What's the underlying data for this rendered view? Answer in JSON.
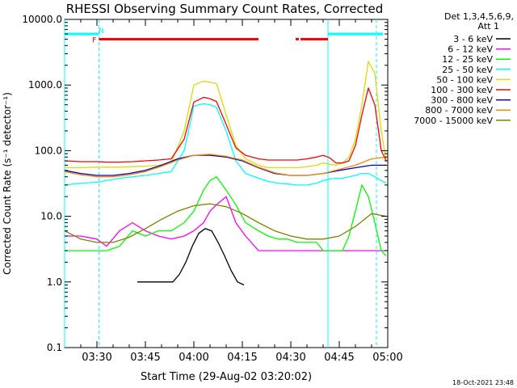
{
  "chart_data": {
    "type": "line",
    "title": "RHESSI Observing Summary Count Rates, Corrected",
    "xlabel": "Start Time (29-Aug-02 03:20:02)",
    "ylabel": "Corrected Count Rate (s⁻¹ detector⁻¹)",
    "y_scale": "log",
    "ylim": [
      0.1,
      10000
    ],
    "xlim_minutes": [
      0,
      100
    ],
    "x_ticks": [
      {
        "t": 10,
        "label": "03:30"
      },
      {
        "t": 25,
        "label": "03:45"
      },
      {
        "t": 40,
        "label": "04:00"
      },
      {
        "t": 55,
        "label": "04:15"
      },
      {
        "t": 70,
        "label": "04:30"
      },
      {
        "t": 85,
        "label": "04:45"
      },
      {
        "t": 100,
        "label": "05:00"
      }
    ],
    "y_ticks": [
      {
        "v": 0.1,
        "label": "0.1"
      },
      {
        "v": 1,
        "label": "1.0"
      },
      {
        "v": 10,
        "label": "10.0"
      },
      {
        "v": 100,
        "label": "100.0"
      },
      {
        "v": 1000,
        "label": "1000.0"
      },
      {
        "v": 10000,
        "label": "10000.0"
      }
    ],
    "legend": {
      "placement": "right",
      "header1": "Det 1,3,4,5,6,9,",
      "header2": "Att 1"
    },
    "series": [
      {
        "name": "3 - 6 keV",
        "color": "#000000",
        "x": [
          22.5,
          25.5,
          27.5,
          29.5,
          31.5,
          33.5,
          35.5,
          37.5,
          39.5,
          41.5,
          43.5,
          45.5,
          47.5,
          49.5,
          51.5,
          53.5,
          55.5
        ],
        "y": [
          1.0,
          1.0,
          1.0,
          1.0,
          1.0,
          1.0,
          1.3,
          2.0,
          3.5,
          5.5,
          6.5,
          6.0,
          4.0,
          2.5,
          1.5,
          1.0,
          0.9
        ]
      },
      {
        "name": "6 - 12 keV",
        "color": "#ff00ff",
        "x": [
          0,
          5,
          10,
          13,
          17,
          21,
          25,
          29,
          33,
          37,
          40,
          43,
          45,
          47,
          50,
          53,
          56,
          60,
          63,
          66,
          69,
          72,
          75,
          78,
          80,
          82,
          84,
          86,
          88,
          90,
          92,
          94,
          96,
          98,
          99.5
        ],
        "y": [
          5,
          5,
          4.5,
          3.5,
          6,
          8,
          6,
          5,
          4.5,
          5,
          6,
          8,
          12,
          15,
          20,
          8,
          5,
          3,
          3,
          3,
          3,
          3,
          3,
          3,
          3,
          3,
          3,
          3,
          3,
          3,
          3,
          3,
          3,
          3,
          3
        ]
      },
      {
        "name": "12 - 25 keV",
        "color": "#00ff00",
        "x": [
          0,
          5,
          10,
          13,
          17,
          21,
          25,
          29,
          33,
          37,
          40,
          43,
          45,
          47,
          50,
          53,
          56,
          60,
          63,
          66,
          69,
          72,
          75,
          78,
          80,
          82,
          84,
          86,
          88,
          90,
          92,
          94,
          96,
          98,
          99.5
        ],
        "y": [
          3,
          3,
          3,
          3,
          3.5,
          6,
          5,
          6,
          6,
          8,
          12,
          25,
          35,
          40,
          25,
          15,
          8,
          6,
          5,
          4.5,
          4.5,
          4,
          4,
          4,
          3,
          3,
          3,
          3,
          5,
          12,
          30,
          20,
          8,
          3,
          2.5
        ]
      },
      {
        "name": "25 - 50 keV",
        "color": "#00ffff",
        "x": [
          0,
          5,
          10,
          13,
          17,
          21,
          25,
          29,
          33,
          37,
          40,
          43,
          45,
          47,
          50,
          53,
          56,
          60,
          63,
          66,
          69,
          72,
          75,
          78,
          80,
          82,
          84,
          86,
          88,
          90,
          92,
          94,
          96,
          98,
          99.5
        ],
        "y": [
          30,
          32,
          33,
          35,
          38,
          40,
          42,
          45,
          48,
          100,
          480,
          520,
          500,
          460,
          200,
          70,
          45,
          38,
          34,
          32,
          31,
          30,
          30,
          32,
          35,
          37,
          38,
          38,
          40,
          42,
          45,
          45,
          40,
          35,
          32
        ]
      },
      {
        "name": "50 - 100 keV",
        "color": "#dddd00",
        "x": [
          0,
          5,
          10,
          13,
          17,
          21,
          25,
          29,
          33,
          37,
          40,
          43,
          45,
          47,
          50,
          53,
          56,
          60,
          63,
          66,
          69,
          72,
          75,
          78,
          80,
          82,
          84,
          86,
          88,
          90,
          92,
          94,
          96,
          98,
          99.5
        ],
        "y": [
          55,
          55,
          56,
          56,
          56,
          57,
          58,
          60,
          65,
          200,
          1000,
          1150,
          1100,
          1050,
          350,
          120,
          75,
          60,
          55,
          55,
          55,
          55,
          57,
          60,
          65,
          62,
          60,
          65,
          80,
          150,
          500,
          2300,
          1500,
          200,
          70
        ]
      },
      {
        "name": "100 - 300 keV",
        "color": "#ff0000",
        "x": [
          0,
          5,
          10,
          13,
          17,
          21,
          25,
          29,
          33,
          37,
          40,
          43,
          45,
          47,
          50,
          53,
          56,
          60,
          63,
          66,
          69,
          72,
          75,
          78,
          80,
          82,
          84,
          86,
          88,
          90,
          92,
          94,
          96,
          98,
          99.5
        ],
        "y": [
          70,
          68,
          68,
          67,
          67,
          68,
          70,
          72,
          75,
          150,
          550,
          650,
          620,
          560,
          250,
          110,
          85,
          75,
          72,
          72,
          72,
          72,
          75,
          80,
          85,
          78,
          65,
          65,
          70,
          120,
          350,
          900,
          500,
          100,
          70
        ]
      },
      {
        "name": "300 - 800 keV",
        "color": "#0000cc",
        "x": [
          0,
          5,
          10,
          15,
          20,
          25,
          30,
          35,
          40,
          45,
          50,
          55,
          60,
          65,
          70,
          75,
          80,
          85,
          90,
          95,
          99.5
        ],
        "y": [
          50,
          45,
          42,
          42,
          45,
          50,
          60,
          75,
          85,
          85,
          80,
          70,
          55,
          45,
          42,
          42,
          45,
          50,
          55,
          60,
          60
        ]
      },
      {
        "name": "800 - 7000 keV",
        "color": "#ff8800",
        "x": [
          0,
          5,
          10,
          15,
          20,
          25,
          30,
          35,
          40,
          45,
          50,
          55,
          60,
          65,
          70,
          75,
          80,
          85,
          90,
          95,
          99.5
        ],
        "y": [
          48,
          43,
          40,
          40,
          43,
          48,
          58,
          72,
          85,
          88,
          82,
          72,
          56,
          46,
          42,
          42,
          45,
          52,
          60,
          75,
          80
        ]
      },
      {
        "name": "7000 - 15000 keV",
        "color": "#808000",
        "x": [
          0,
          5,
          10,
          15,
          20,
          25,
          30,
          35,
          40,
          45,
          50,
          55,
          60,
          65,
          70,
          75,
          80,
          85,
          90,
          95,
          99.5
        ],
        "y": [
          6,
          4.5,
          4,
          4,
          4.8,
          6.5,
          9,
          12,
          14.5,
          15.5,
          14,
          11,
          8,
          6,
          5,
          4.5,
          4.5,
          5,
          7,
          11,
          10
        ]
      }
    ],
    "cyan_lines": [
      {
        "t": 0,
        "style": "solid"
      },
      {
        "t": 10.6,
        "style": "dashed"
      },
      {
        "t": 81.5,
        "style": "solid"
      },
      {
        "t": 96.5,
        "style": "dashed"
      }
    ],
    "flag_bars": {
      "y_value": 5000,
      "cyan_y_value": 6000,
      "cyan_segments": [
        [
          0,
          10.6
        ],
        [
          81.5,
          98.5
        ]
      ],
      "red_segments": [
        [
          10.6,
          60
        ],
        [
          71.5,
          72.5
        ],
        [
          73,
          81.5
        ]
      ],
      "labels": [
        {
          "text": "F",
          "t": 9.2,
          "color": "#ff0000"
        },
        {
          "text": "N",
          "t": 11.4,
          "color": "#00ffff"
        }
      ]
    }
  },
  "footer_timestamp": "18-Oct-2021 23:48"
}
